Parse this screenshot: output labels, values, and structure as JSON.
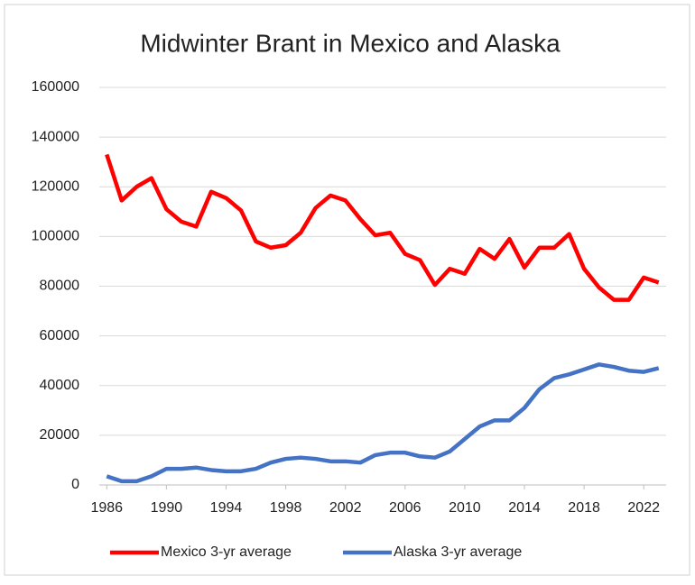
{
  "chart_data": {
    "type": "line",
    "title": "Midwinter Brant in Mexico and Alaska",
    "x": [
      1986,
      1987,
      1988,
      1989,
      1990,
      1991,
      1992,
      1993,
      1994,
      1995,
      1996,
      1997,
      1998,
      1999,
      2000,
      2001,
      2002,
      2003,
      2004,
      2005,
      2006,
      2007,
      2008,
      2009,
      2010,
      2011,
      2012,
      2013,
      2014,
      2015,
      2016,
      2017,
      2018,
      2019,
      2020,
      2021,
      2022,
      2023
    ],
    "series": [
      {
        "name": "Mexico 3-yr average",
        "color": "#ff0000",
        "values": [
          133000,
          114500,
          120000,
          123500,
          111000,
          106000,
          104000,
          118000,
          115500,
          110500,
          98000,
          95500,
          96500,
          101500,
          111500,
          116500,
          114500,
          107000,
          100500,
          101500,
          93000,
          90500,
          80500,
          87000,
          85000,
          95000,
          91000,
          99000,
          87500,
          95500,
          95500,
          101000,
          87000,
          79500,
          74500,
          74500,
          83500,
          81500
        ]
      },
      {
        "name": "Alaska 3-yr average",
        "color": "#4472c4",
        "values": [
          3500,
          1500,
          1500,
          3500,
          6500,
          6500,
          7000,
          6000,
          5500,
          5500,
          6500,
          9000,
          10500,
          11000,
          10500,
          9500,
          9500,
          9000,
          12000,
          13000,
          13000,
          11500,
          11000,
          13500,
          18500,
          23500,
          26000,
          26000,
          31000,
          38500,
          43000,
          44500,
          46500,
          48500,
          47500,
          46000,
          45500,
          47000
        ]
      }
    ],
    "xlim": [
      1985.5,
      2023.5
    ],
    "xticks": [
      1986,
      1990,
      1994,
      1998,
      2002,
      2006,
      2010,
      2014,
      2018,
      2022
    ],
    "ylim": [
      0,
      160000
    ],
    "yticks": [
      0,
      20000,
      40000,
      60000,
      80000,
      100000,
      120000,
      140000,
      160000
    ],
    "grid": true,
    "legend": "bottom"
  }
}
